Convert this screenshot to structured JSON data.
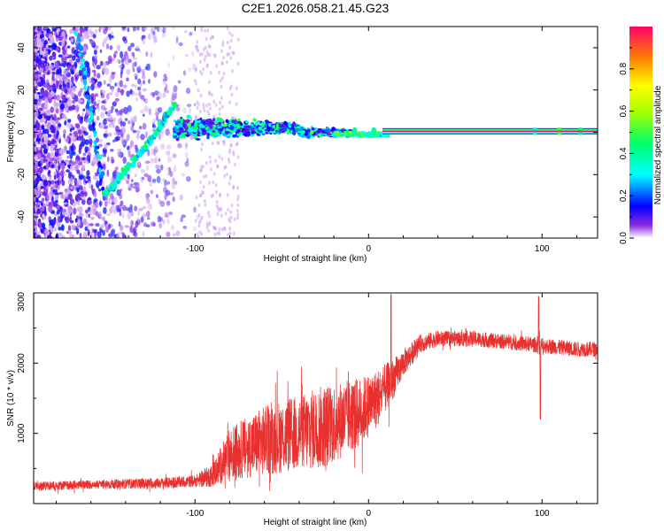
{
  "title": "C2E1.2026.058.21.45.G23",
  "chart_data": [
    {
      "type": "heatmap",
      "name": "spectrogram",
      "xlabel": "Height of straight line (km)",
      "ylabel": "Frequency (Hz)",
      "xlim": [
        -193,
        132
      ],
      "ylim": [
        -50,
        50
      ],
      "xticks": [
        -100,
        0,
        100
      ],
      "yticks": [
        -40,
        -20,
        0,
        20,
        40
      ],
      "colorbar": {
        "label": "Normalized spectral amplitude",
        "range": [
          0,
          1
        ],
        "ticks": [
          0.0,
          0.2,
          0.4,
          0.6,
          0.8
        ]
      },
      "features": {
        "carrier_line": {
          "frequency": 0.5,
          "x_start": 12,
          "x_end": 132,
          "amplitude": 1.0
        },
        "diagonal_track": {
          "points": [
            [
              -168,
              48
            ],
            [
              -152,
              -30
            ],
            [
              -138,
              -16
            ],
            [
              -122,
              0
            ],
            [
              -112,
              13
            ]
          ]
        },
        "noisy_band": {
          "x_start": -112,
          "x_end": -20,
          "frequency": 2,
          "spread": 10
        }
      }
    },
    {
      "type": "line",
      "name": "snr",
      "xlabel": "Height of straight line (km)",
      "ylabel": "SNR (10 * v/v)",
      "xlim": [
        -193,
        132
      ],
      "ylim": [
        0,
        3000
      ],
      "xticks": [
        -100,
        0,
        100
      ],
      "yticks": [
        1000,
        2000,
        3000
      ],
      "color": "#e8302f",
      "envelope": {
        "x": [
          -193,
          -160,
          -120,
          -100,
          -90,
          -80,
          -60,
          -40,
          -25,
          -15,
          -5,
          5,
          15,
          20,
          30,
          40,
          60,
          80,
          100,
          120,
          132
        ],
        "baseline": [
          250,
          270,
          290,
          320,
          400,
          700,
          900,
          1000,
          1100,
          1200,
          1300,
          1500,
          1800,
          2000,
          2280,
          2350,
          2350,
          2300,
          2250,
          2200,
          2200
        ],
        "noise": [
          60,
          60,
          70,
          80,
          150,
          350,
          450,
          500,
          550,
          500,
          450,
          380,
          250,
          180,
          120,
          100,
          100,
          100,
          100,
          100,
          100
        ]
      },
      "spikes": [
        {
          "x": 13,
          "y": 2980
        },
        {
          "x": 98,
          "y": 2950
        },
        {
          "x": 99,
          "y": 1200
        }
      ]
    }
  ]
}
